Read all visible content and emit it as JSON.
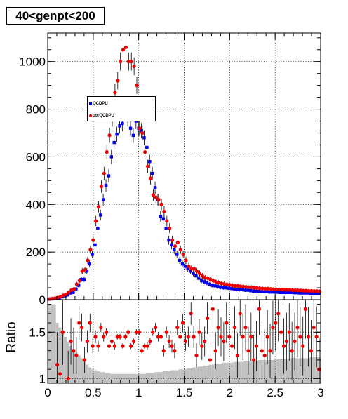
{
  "colors": {
    "series_main": "#0000ee",
    "series_corrected": "#ee0000",
    "ratio_band": "#c0c0c0",
    "frame": "#000000"
  },
  "chart_data": [
    {
      "type": "scatter",
      "title": "40<genpt<200",
      "xlabel": "",
      "ylabel": "",
      "xlim": [
        0,
        3
      ],
      "ylim": [
        0,
        1120
      ],
      "xticks": [
        "0",
        "0.5",
        "1",
        "1.5",
        "2",
        "2.5",
        "3"
      ],
      "yticks": [
        "0",
        "200",
        "400",
        "600",
        "800",
        "1000"
      ],
      "grid": true,
      "legend_position": "upper-left",
      "bin_width": 0.03,
      "x": [
        0.015,
        0.045,
        0.075,
        0.105,
        0.135,
        0.165,
        0.195,
        0.225,
        0.255,
        0.285,
        0.315,
        0.345,
        0.375,
        0.405,
        0.435,
        0.465,
        0.495,
        0.525,
        0.555,
        0.585,
        0.615,
        0.645,
        0.675,
        0.705,
        0.735,
        0.765,
        0.795,
        0.825,
        0.855,
        0.885,
        0.915,
        0.945,
        0.975,
        1.005,
        1.035,
        1.065,
        1.095,
        1.125,
        1.155,
        1.185,
        1.215,
        1.245,
        1.275,
        1.305,
        1.335,
        1.365,
        1.395,
        1.425,
        1.455,
        1.485,
        1.515,
        1.545,
        1.575,
        1.605,
        1.635,
        1.665,
        1.695,
        1.725,
        1.755,
        1.785,
        1.815,
        1.845,
        1.875,
        1.905,
        1.935,
        1.965,
        1.995,
        2.025,
        2.055,
        2.085,
        2.115,
        2.145,
        2.175,
        2.205,
        2.235,
        2.265,
        2.295,
        2.325,
        2.355,
        2.385,
        2.415,
        2.445,
        2.475,
        2.505,
        2.535,
        2.565,
        2.595,
        2.625,
        2.655,
        2.685,
        2.715,
        2.745,
        2.775,
        2.805,
        2.835,
        2.865,
        2.895,
        2.925,
        2.955,
        2.985
      ],
      "series": [
        {
          "name": "QCDPU",
          "marker": "square",
          "values": [
            2,
            3,
            4,
            6,
            8,
            12,
            16,
            20,
            28,
            30,
            45,
            60,
            85,
            85,
            120,
            150,
            190,
            230,
            300,
            355,
            420,
            480,
            520,
            600,
            660,
            695,
            730,
            740,
            790,
            760,
            720,
            690,
            750,
            720,
            710,
            680,
            640,
            580,
            530,
            470,
            420,
            350,
            340,
            300,
            250,
            230,
            210,
            190,
            165,
            150,
            140,
            130,
            120,
            110,
            100,
            90,
            80,
            75,
            70,
            65,
            60,
            58,
            55,
            52,
            50,
            50,
            48,
            47,
            45,
            44,
            42,
            42,
            40,
            40,
            38,
            36,
            36,
            35,
            34,
            33,
            33,
            32,
            32,
            32,
            31,
            30,
            30,
            30,
            30,
            30,
            29,
            29,
            28,
            28,
            28,
            28,
            27,
            27,
            27,
            27
          ]
        },
        {
          "name": "corQCDPU",
          "marker": "circle",
          "values": [
            3,
            4,
            6,
            9,
            13,
            18,
            22,
            30,
            40,
            45,
            65,
            80,
            120,
            125,
            165,
            210,
            250,
            330,
            390,
            475,
            530,
            620,
            690,
            760,
            870,
            920,
            1000,
            1050,
            1060,
            1000,
            1000,
            980,
            900,
            720,
            700,
            620,
            560,
            510,
            440,
            430,
            420,
            400,
            370,
            330,
            300,
            250,
            225,
            240,
            210,
            190,
            165,
            140,
            130,
            130,
            120,
            110,
            100,
            92,
            90,
            85,
            80,
            75,
            72,
            68,
            66,
            64,
            62,
            60,
            58,
            58,
            56,
            55,
            54,
            52,
            52,
            50,
            49,
            48,
            47,
            46,
            46,
            45,
            44,
            43,
            43,
            42,
            42,
            41,
            41,
            40,
            40,
            39,
            39,
            38,
            38,
            37,
            37,
            36,
            36,
            35
          ]
        }
      ]
    },
    {
      "type": "scatter",
      "title": "",
      "xlabel": "",
      "ylabel": "Ratio",
      "xlim": [
        0,
        3
      ],
      "ylim": [
        0.95,
        1.85
      ],
      "xticks": [
        "0",
        "0.5",
        "1",
        "1.5",
        "2",
        "2.5",
        "3"
      ],
      "yticks": [
        "1",
        "1.5"
      ],
      "grid": true,
      "ratio": [
        null,
        null,
        null,
        1.15,
        1.05,
        1.5,
        null,
        1.0,
        1.4,
        1.3,
        1.25,
        1.6,
        1.55,
        1.2,
        1.4,
        1.6,
        1.35,
        1.45,
        1.35,
        1.55,
        1.45,
        1.5,
        1.35,
        1.4,
        1.35,
        1.45,
        1.45,
        1.35,
        1.45,
        1.5,
        1.35,
        1.4,
        1.5,
        1.5,
        1.3,
        1.35,
        1.35,
        1.4,
        1.5,
        1.55,
        1.45,
        1.45,
        1.3,
        1.5,
        1.4,
        1.35,
        1.3,
        1.55,
        1.45,
        1.6,
        1.4,
        1.45,
        1.7,
        1.45,
        1.25,
        1.5,
        1.35,
        1.4,
        1.65,
        1.2,
        1.75,
        1.3,
        1.55,
        1.45,
        1.4,
        1.6,
        1.45,
        1.35,
        1.55,
        1.25,
        1.7,
        1.45,
        1.55,
        1.3,
        1.45,
        1.2,
        1.35,
        1.75,
        1.3,
        1.25,
        1.45,
        1.3,
        1.55,
        1.6,
        1.7,
        1.5,
        1.35,
        1.4,
        1.5,
        1.3,
        1.4,
        1.55,
        1.45,
        1.35,
        1.75,
        1.45,
        1.3,
        1.55,
        1.45,
        1.1
      ],
      "ratio_err": [
        0,
        0,
        0,
        0.35,
        0.35,
        0.35,
        0,
        0.3,
        0.25,
        0.25,
        0.2,
        0.18,
        0.15,
        0.14,
        0.12,
        0.1,
        0.08,
        0.07,
        0.06,
        0.05,
        0.05,
        0.04,
        0.04,
        0.04,
        0.04,
        0.03,
        0.03,
        0.03,
        0.03,
        0.03,
        0.03,
        0.03,
        0.03,
        0.03,
        0.03,
        0.03,
        0.04,
        0.04,
        0.04,
        0.05,
        0.05,
        0.05,
        0.06,
        0.06,
        0.07,
        0.07,
        0.08,
        0.08,
        0.09,
        0.1,
        0.1,
        0.11,
        0.12,
        0.12,
        0.13,
        0.14,
        0.15,
        0.16,
        0.17,
        0.18,
        0.19,
        0.2,
        0.2,
        0.21,
        0.21,
        0.22,
        0.22,
        0.23,
        0.23,
        0.24,
        0.24,
        0.25,
        0.25,
        0.26,
        0.26,
        0.27,
        0.27,
        0.28,
        0.28,
        0.28,
        0.29,
        0.29,
        0.29,
        0.3,
        0.3,
        0.3,
        0.3,
        0.31,
        0.31,
        0.31,
        0.31,
        0.32,
        0.32,
        0.32,
        0.32,
        0.32,
        0.33,
        0.33,
        0.33,
        0.33
      ],
      "band": [
        1.8,
        1.8,
        1.8,
        1.6,
        1.55,
        1.5,
        1.45,
        1.4,
        1.35,
        1.32,
        1.28,
        1.25,
        1.22,
        1.18,
        1.15,
        1.12,
        1.1,
        1.09,
        1.08,
        1.07,
        1.07,
        1.06,
        1.06,
        1.05,
        1.05,
        1.05,
        1.05,
        1.05,
        1.05,
        1.05,
        1.05,
        1.05,
        1.05,
        1.05,
        1.05,
        1.05,
        1.06,
        1.06,
        1.06,
        1.07,
        1.07,
        1.07,
        1.08,
        1.08,
        1.08,
        1.09,
        1.09,
        1.09,
        1.1,
        1.1,
        1.1,
        1.11,
        1.11,
        1.12,
        1.12,
        1.13,
        1.13,
        1.14,
        1.14,
        1.15,
        1.15,
        1.16,
        1.16,
        1.16,
        1.17,
        1.17,
        1.17,
        1.17,
        1.18,
        1.18,
        1.18,
        1.18,
        1.19,
        1.19,
        1.19,
        1.19,
        1.19,
        1.2,
        1.2,
        1.2,
        1.2,
        1.2,
        1.2,
        1.21,
        1.21,
        1.21,
        1.21,
        1.21,
        1.21,
        1.22,
        1.22,
        1.22,
        1.22,
        1.22,
        1.22,
        1.22,
        1.23,
        1.23,
        1.23,
        1.23
      ]
    }
  ]
}
